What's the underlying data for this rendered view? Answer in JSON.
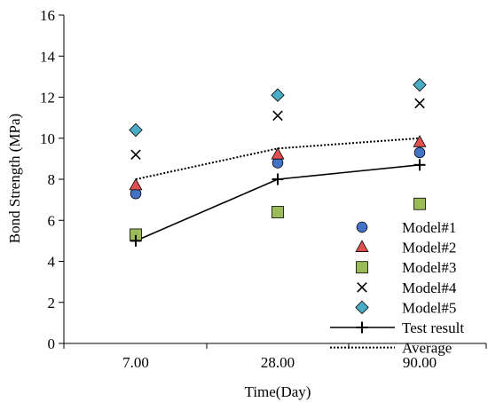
{
  "chart_data": {
    "type": "scatter",
    "categories": [
      "7.00",
      "28.00",
      "90.00"
    ],
    "xlabel": "Time(Day)",
    "ylabel": "Bond Strength (MPa)",
    "ylim": [
      0,
      16
    ],
    "yticks": [
      "0",
      "2",
      "4",
      "6",
      "8",
      "10",
      "12",
      "14",
      "16"
    ],
    "grid": false,
    "legend_position": "bottom-right",
    "series": [
      {
        "name": "Model#1",
        "values": [
          7.3,
          8.8,
          9.3
        ],
        "marker": "circle",
        "color": "#4472C4",
        "kind": "marker"
      },
      {
        "name": "Model#2",
        "values": [
          7.7,
          9.2,
          9.8
        ],
        "marker": "triangle",
        "color": "#E0504E",
        "kind": "marker"
      },
      {
        "name": "Model#3",
        "values": [
          5.3,
          6.4,
          6.8
        ],
        "marker": "square",
        "color": "#9BBB59",
        "kind": "marker"
      },
      {
        "name": "Model#4",
        "values": [
          9.2,
          11.1,
          11.7
        ],
        "marker": "x",
        "color": "#000000",
        "kind": "marker"
      },
      {
        "name": "Model#5",
        "values": [
          10.4,
          12.1,
          12.6
        ],
        "marker": "diamond",
        "color": "#4BACC6",
        "kind": "marker"
      },
      {
        "name": "Test result",
        "values": [
          5.0,
          8.0,
          8.7
        ],
        "marker": "plus",
        "color": "#000000",
        "kind": "line"
      },
      {
        "name": "Average",
        "values": [
          8.0,
          9.5,
          10.0
        ],
        "marker": "none",
        "color": "#000000",
        "kind": "dotted"
      }
    ]
  }
}
